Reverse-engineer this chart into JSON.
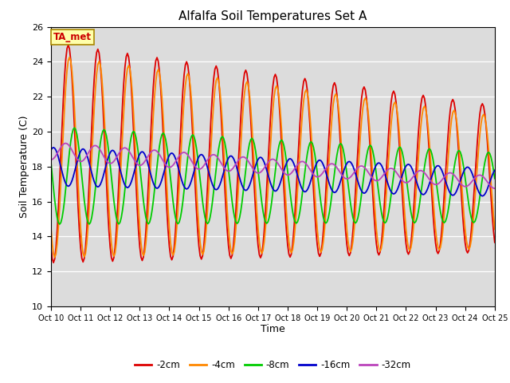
{
  "title": "Alfalfa Soil Temperatures Set A",
  "xlabel": "Time",
  "ylabel": "Soil Temperature (C)",
  "ylim": [
    10,
    26
  ],
  "xlim": [
    0,
    360
  ],
  "annotation": "TA_met",
  "bg_color": "#dcdcdc",
  "series": {
    "-2cm": {
      "color": "#dd0000",
      "lw": 1.3
    },
    "-4cm": {
      "color": "#ff8800",
      "lw": 1.3
    },
    "-8cm": {
      "color": "#00cc00",
      "lw": 1.3
    },
    "-16cm": {
      "color": "#0000cc",
      "lw": 1.3
    },
    "-32cm": {
      "color": "#bb44bb",
      "lw": 1.3
    }
  },
  "xtick_labels": [
    "Oct 10",
    "Oct 11",
    "Oct 12",
    "Oct 13",
    "Oct 14",
    "Oct 15",
    "Oct 16",
    "Oct 17",
    "Oct 18",
    "Oct 19",
    "Oct 20",
    "Oct 21",
    "Oct 22",
    "Oct 23",
    "Oct 24",
    "Oct 25"
  ],
  "xtick_positions": [
    0,
    24,
    48,
    72,
    96,
    120,
    144,
    168,
    192,
    216,
    240,
    264,
    288,
    312,
    336,
    360
  ],
  "yticks": [
    10,
    12,
    14,
    16,
    18,
    20,
    22,
    24,
    26
  ],
  "figsize": [
    6.4,
    4.8
  ],
  "dpi": 100
}
